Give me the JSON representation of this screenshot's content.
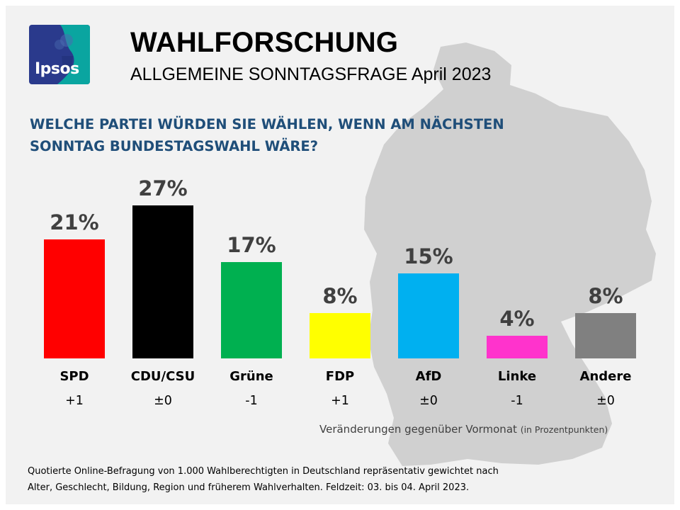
{
  "header": {
    "title": "WAHLFORSCHUNG",
    "subtitle": "ALLGEMEINE SONNTAGSFRAGE April 2023",
    "logo_text": "Ipsos"
  },
  "question": {
    "line1": "WELCHE PARTEI WÜRDEN SIE WÄHLEN, WENN AM NÄCHSTEN",
    "line2": "SONNTAG BUNDESTAGSWAHL WÄRE?"
  },
  "chart_data": {
    "type": "bar",
    "title": "WELCHE PARTEI WÜRDEN SIE WÄHLEN, WENN AM NÄCHSTEN SONNTAG BUNDESTAGSWAHL WÄRE?",
    "categories": [
      "SPD",
      "CDU/CSU",
      "Grüne",
      "FDP",
      "AfD",
      "Linke",
      "Andere"
    ],
    "values": [
      21,
      27,
      17,
      8,
      15,
      4,
      8
    ],
    "value_labels": [
      "21%",
      "27%",
      "17%",
      "8%",
      "15%",
      "4%",
      "8%"
    ],
    "changes": [
      "+1",
      "±0",
      "-1",
      "+1",
      "±0",
      "-1",
      "±0"
    ],
    "colors": [
      "#ff0000",
      "#000000",
      "#00b050",
      "#ffff00",
      "#00b0f0",
      "#ff33cc",
      "#808080"
    ],
    "ylim": [
      0,
      27
    ],
    "grid": false,
    "xlabel": "",
    "ylabel": ""
  },
  "change_note": {
    "text": "Veränderungen gegenüber Vormonat",
    "unit": "(in Prozentpunkten)"
  },
  "footer": {
    "line1": "Quotierte Online-Befragung  von 1.000 Wahlberechtigten  in Deutschland repräsentativ gewichtet nach",
    "line2": "Alter, Geschlecht, Bildung, Region und früherem Wahlverhalten.  Feldzeit: 03. bis 04. April 2023."
  },
  "colors": {
    "background": "#f2f2f2",
    "map": "#d0d0d0",
    "question": "#1f4e79",
    "logo_blue": "#2a3a8c",
    "logo_teal": "#0aa5a0"
  }
}
